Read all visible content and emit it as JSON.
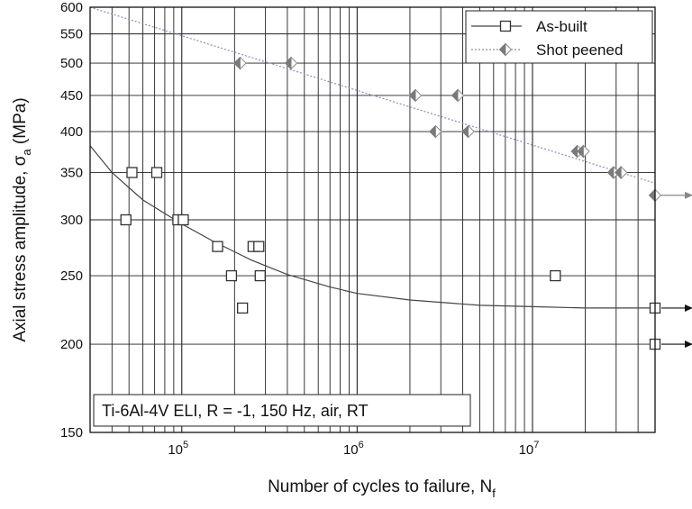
{
  "chart_data": {
    "type": "scatter",
    "xscale": "log",
    "yscale": "log",
    "xlim": [
      30000,
      50000000
    ],
    "ylim": [
      150,
      600
    ],
    "xlabel": "Number of cycles to failure, N",
    "xlabel_sub": "f",
    "ylabel": "Axial stress amplitude, σ",
    "ylabel_sub": "a",
    "ylabel_unit": " (MPa)",
    "x_ticks": [
      {
        "value": 100000,
        "base": "10",
        "exp": "5"
      },
      {
        "value": 1000000,
        "base": "10",
        "exp": "6"
      },
      {
        "value": 10000000,
        "base": "10",
        "exp": "7"
      }
    ],
    "y_ticks": [
      150,
      200,
      250,
      300,
      350,
      400,
      450,
      500,
      550,
      600
    ],
    "grid": true,
    "legend_position": "top-right",
    "annotation": "Ti-6Al-4V ELI, R = -1, 150 Hz, air, RT",
    "series": [
      {
        "name": "As-built",
        "marker": "square",
        "color": "#333333",
        "points": [
          [
            48000,
            300
          ],
          [
            52000,
            350
          ],
          [
            72000,
            350
          ],
          [
            95000,
            300
          ],
          [
            102000,
            300
          ],
          [
            160000,
            275
          ],
          [
            192000,
            250
          ],
          [
            222000,
            225
          ],
          [
            255000,
            275
          ],
          [
            275000,
            275
          ],
          [
            280000,
            250
          ],
          [
            13500000,
            250
          ]
        ],
        "runouts": [
          [
            50000000,
            225
          ],
          [
            50000000,
            200
          ]
        ],
        "fit": [
          [
            30000,
            382
          ],
          [
            40000,
            350
          ],
          [
            60000,
            320
          ],
          [
            100000,
            296
          ],
          [
            150000,
            280
          ],
          [
            250000,
            263
          ],
          [
            400000,
            251
          ],
          [
            700000,
            241
          ],
          [
            1000000,
            236
          ],
          [
            2000000,
            231
          ],
          [
            5000000,
            227
          ],
          [
            10000000,
            226
          ],
          [
            20000000,
            225
          ],
          [
            50000000,
            225
          ]
        ]
      },
      {
        "name": "Shot peened",
        "marker": "half-filled-diamond",
        "color": "#777777",
        "points": [
          [
            215000,
            500
          ],
          [
            420000,
            500
          ],
          [
            2150000,
            450
          ],
          [
            3750000,
            450
          ],
          [
            2800000,
            400
          ],
          [
            4300000,
            400
          ],
          [
            18000000,
            375
          ],
          [
            19500000,
            375
          ],
          [
            29000000,
            350
          ],
          [
            32000000,
            350
          ]
        ],
        "runouts": [
          [
            50000000,
            325
          ]
        ],
        "fit": [
          [
            30000,
            600
          ],
          [
            50000000,
            338
          ]
        ]
      }
    ]
  }
}
